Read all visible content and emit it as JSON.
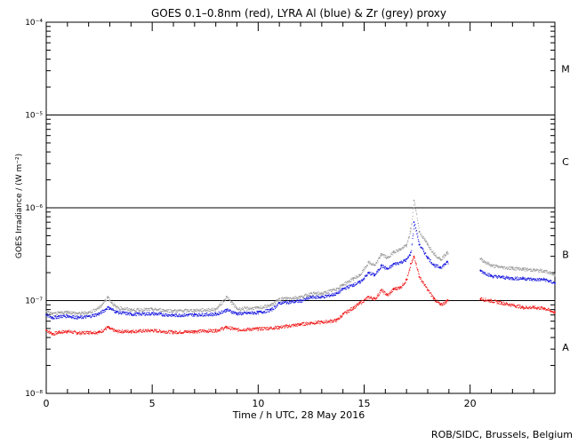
{
  "chart_data": {
    "type": "scatter",
    "title": "GOES 0.1–0.8nm (red), LYRA Al (blue) & Zr (grey) proxy",
    "xlabel": "Time / h UTC, 28 May 2016",
    "ylabel": "GOES Irradiance / (W m⁻²)",
    "credit": "ROB/SIDC, Brussels, Belgium",
    "xlim": [
      0,
      24
    ],
    "ylim_log10": [
      -8,
      -4
    ],
    "xticks": [
      {
        "value": 0,
        "label": "0"
      },
      {
        "value": 5,
        "label": "5"
      },
      {
        "value": 10,
        "label": "10"
      },
      {
        "value": 15,
        "label": "15"
      },
      {
        "value": 20,
        "label": "20"
      }
    ],
    "yticks": [
      {
        "exp": -8,
        "label": "10⁻⁸"
      },
      {
        "exp": -7,
        "label": "10⁻⁷"
      },
      {
        "exp": -6,
        "label": "10⁻⁶"
      },
      {
        "exp": -5,
        "label": "10⁻⁵"
      },
      {
        "exp": -4,
        "label": "10⁻⁴"
      }
    ],
    "class_lines": [
      -7,
      -6,
      -5
    ],
    "flare_classes": [
      {
        "label": "A",
        "pos": -7.5
      },
      {
        "label": "B",
        "pos": -6.5
      },
      {
        "label": "C",
        "pos": -5.5
      },
      {
        "label": "M",
        "pos": -4.5
      }
    ],
    "series": [
      {
        "name": "GOES 0.1-0.8nm",
        "color": "#ee1111",
        "x": [
          0,
          0.3,
          0.6,
          1.0,
          1.5,
          2.0,
          2.5,
          2.9,
          3.0,
          3.3,
          4.0,
          5.0,
          6.0,
          7.0,
          8.0,
          8.5,
          9.0,
          10.0,
          11.0,
          12.0,
          12.5,
          13.0,
          13.7,
          14.0,
          14.5,
          14.8,
          15.2,
          15.5,
          15.8,
          16.1,
          16.4,
          16.7,
          17.0,
          17.2,
          17.35,
          17.6,
          18.0,
          18.3,
          18.6,
          18.9,
          19.2,
          19.5,
          20.0,
          20.5,
          21.0,
          21.5,
          22.0,
          22.5,
          23.0,
          23.5,
          24.0
        ],
        "y": [
          4.8e-08,
          4.4e-08,
          4.6e-08,
          4.7e-08,
          4.5e-08,
          4.6e-08,
          4.6e-08,
          5.2e-08,
          5e-08,
          4.7e-08,
          4.7e-08,
          4.8e-08,
          4.6e-08,
          4.7e-08,
          4.8e-08,
          5.2e-08,
          4.9e-08,
          5e-08,
          5.2e-08,
          5.6e-08,
          5.8e-08,
          5.9e-08,
          6.2e-08,
          7.2e-08,
          8.5e-08,
          9.5e-08,
          1.1e-07,
          1.05e-07,
          1.3e-07,
          1.15e-07,
          1.35e-07,
          1.4e-07,
          1.7e-07,
          2.5e-07,
          3e-07,
          1.8e-07,
          1.3e-07,
          1.05e-07,
          9e-08,
          1e-07,
          1.2e-07,
          1.1e-07,
          1e-07,
          1.05e-07,
          1e-07,
          9.5e-08,
          9e-08,
          8.5e-08,
          8.5e-08,
          8.3e-08,
          7.5e-08
        ]
      },
      {
        "name": "LYRA Al proxy",
        "color": "#1111dd",
        "x": [
          0,
          0.3,
          0.6,
          1.0,
          1.5,
          2.0,
          2.5,
          2.9,
          3.0,
          3.3,
          4.0,
          5.0,
          6.0,
          7.0,
          8.0,
          8.5,
          9.0,
          10.0,
          10.6,
          11.0,
          12.0,
          12.5,
          13.0,
          13.7,
          14.0,
          14.5,
          14.8,
          15.2,
          15.5,
          15.8,
          16.1,
          16.4,
          16.7,
          17.0,
          17.2,
          17.35,
          17.6,
          18.0,
          18.3,
          18.6,
          18.9,
          20.5,
          21.0,
          21.5,
          22.0,
          22.5,
          23.0,
          23.5,
          24.0
        ],
        "y": [
          7e-08,
          6.6e-08,
          6.8e-08,
          6.9e-08,
          6.6e-08,
          6.8e-08,
          7.3e-08,
          8.5e-08,
          8.3e-08,
          7.6e-08,
          7.2e-08,
          7.3e-08,
          7e-08,
          7.1e-08,
          7.2e-08,
          8e-08,
          7.3e-08,
          7.5e-08,
          8e-08,
          9.5e-08,
          1e-07,
          1.1e-07,
          1.1e-07,
          1.2e-07,
          1.35e-07,
          1.5e-07,
          1.6e-07,
          2e-07,
          1.9e-07,
          2.4e-07,
          2.2e-07,
          2.5e-07,
          2.6e-07,
          2.8e-07,
          3.3e-07,
          7e-07,
          4e-07,
          2.9e-07,
          2.4e-07,
          2.3e-07,
          2.6e-07,
          2.1e-07,
          1.85e-07,
          1.8e-07,
          1.75e-07,
          1.75e-07,
          1.7e-07,
          1.7e-07,
          1.55e-07
        ]
      },
      {
        "name": "LYRA Zr proxy",
        "color": "#999999",
        "x": [
          0,
          0.3,
          0.6,
          1.0,
          1.5,
          2.0,
          2.5,
          2.9,
          3.0,
          3.3,
          4.0,
          5.0,
          6.0,
          7.0,
          8.0,
          8.5,
          9.0,
          10.0,
          10.6,
          11.0,
          12.0,
          12.5,
          13.0,
          13.7,
          14.0,
          14.5,
          14.8,
          15.2,
          15.5,
          15.8,
          16.1,
          16.4,
          16.7,
          17.0,
          17.2,
          17.35,
          17.6,
          18.0,
          18.3,
          18.6,
          18.9,
          20.5,
          21.0,
          21.5,
          22.0,
          22.5,
          23.0,
          23.5,
          24.0
        ],
        "y": [
          7.6e-08,
          7.2e-08,
          7.4e-08,
          7.6e-08,
          7.3e-08,
          7.5e-08,
          8.5e-08,
          1.1e-07,
          1e-07,
          8.5e-08,
          8e-08,
          8.1e-08,
          7.8e-08,
          7.9e-08,
          8.1e-08,
          1.1e-07,
          8.2e-08,
          8.4e-08,
          9e-08,
          1.05e-07,
          1.1e-07,
          1.2e-07,
          1.2e-07,
          1.35e-07,
          1.5e-07,
          1.75e-07,
          1.9e-07,
          2.6e-07,
          2.4e-07,
          3.2e-07,
          2.9e-07,
          3.4e-07,
          3.6e-07,
          4e-07,
          6e-07,
          1.2e-06,
          5.5e-07,
          4e-07,
          3.2e-07,
          2.8e-07,
          3.3e-07,
          2.8e-07,
          2.4e-07,
          2.3e-07,
          2.25e-07,
          2.2e-07,
          2.15e-07,
          2.1e-07,
          1.9e-07
        ]
      }
    ],
    "gaps": [
      [
        18.95,
        20.45
      ]
    ]
  }
}
